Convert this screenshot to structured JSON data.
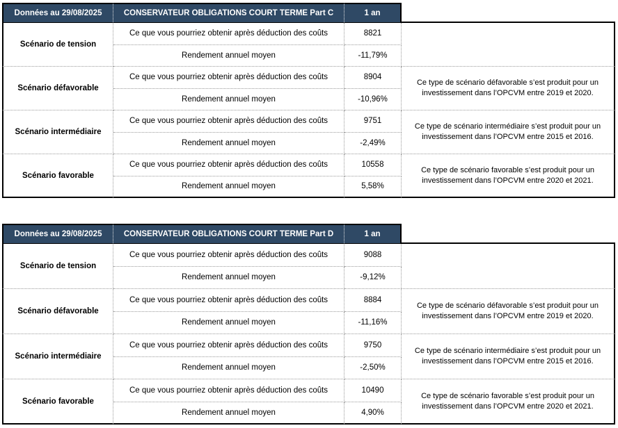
{
  "labels": {
    "value_row": "Ce que vous pourriez obtenir après déduction des coûts",
    "return_row": "Rendement annuel moyen"
  },
  "colors": {
    "header_bg": "#2F4965",
    "header_text": "#FFFFFF",
    "outer_border": "#000000",
    "dotted_border": "#9A9A9A"
  },
  "tables": [
    {
      "header": {
        "date": "Données au 29/08/2025",
        "fund": "CONSERVATEUR OBLIGATIONS COURT TERME Part C",
        "period": "1 an"
      },
      "scenarios": [
        {
          "name": "Scénario de tension",
          "value": "8821",
          "annual_return": "-11,79%",
          "note": ""
        },
        {
          "name": "Scénario défavorable",
          "value": "8904",
          "annual_return": "-10,96%",
          "note": "Ce type de scénario défavorable s’est produit pour un investissement dans l’OPCVM entre 2019 et 2020."
        },
        {
          "name": "Scénario intermédiaire",
          "value": "9751",
          "annual_return": "-2,49%",
          "note": "Ce type de scénario intermédiaire s’est produit pour un investissement dans l’OPCVM entre 2015 et 2016."
        },
        {
          "name": "Scénario favorable",
          "value": "10558",
          "annual_return": "5,58%",
          "note": "Ce type de scénario favorable s’est produit pour un investissement dans l’OPCVM entre 2020 et 2021."
        }
      ]
    },
    {
      "header": {
        "date": "Données au 29/08/2025",
        "fund": "CONSERVATEUR OBLIGATIONS COURT TERME Part D",
        "period": "1 an"
      },
      "scenarios": [
        {
          "name": "Scénario de tension",
          "value": "9088",
          "annual_return": "-9,12%",
          "note": ""
        },
        {
          "name": "Scénario défavorable",
          "value": "8884",
          "annual_return": "-11,16%",
          "note": "Ce type de scénario défavorable s’est produit pour un investissement dans l’OPCVM entre 2019 et 2020."
        },
        {
          "name": "Scénario intermédiaire",
          "value": "9750",
          "annual_return": "-2,50%",
          "note": "Ce type de scénario intermédiaire s’est produit pour un investissement dans l’OPCVM entre 2015 et 2016."
        },
        {
          "name": "Scénario favorable",
          "value": "10490",
          "annual_return": "4,90%",
          "note": "Ce type de scénario favorable s’est produit pour un investissement dans l’OPCVM entre 2020 et 2021."
        }
      ]
    }
  ]
}
